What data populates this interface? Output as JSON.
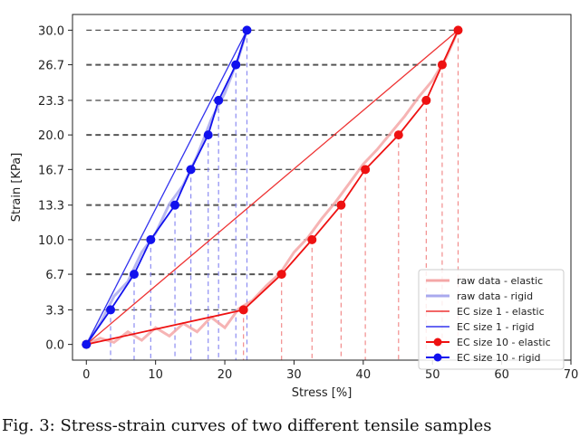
{
  "chart_data": {
    "type": "line",
    "xlabel": "Stress [%]",
    "ylabel": "Strain [KPa]",
    "xlim": [
      -2,
      70
    ],
    "ylim": [
      -1.5,
      31.5
    ],
    "xticks": [
      0,
      10,
      20,
      30,
      40,
      50,
      60,
      70
    ],
    "yticks": [
      0.0,
      3.3,
      6.7,
      10.0,
      13.3,
      16.7,
      20.0,
      23.3,
      26.7,
      30.0
    ],
    "ytick_labels": [
      "0.0",
      "3.3",
      "6.7",
      "10.0",
      "13.3",
      "16.7",
      "20.0",
      "23.3",
      "26.7",
      "30.0"
    ],
    "grid": false,
    "legend_position": "lower-right",
    "series": [
      {
        "name": "raw data - elastic",
        "style": "raw",
        "color": "#f4a7a7",
        "x": [
          0,
          2,
          4,
          6,
          8,
          10,
          12,
          14,
          16,
          18,
          20,
          22,
          24,
          26,
          28,
          30,
          32,
          34,
          36,
          38,
          40,
          42,
          44,
          46,
          48,
          50,
          52,
          53.7
        ],
        "y": [
          0,
          0.6,
          0.2,
          1.2,
          0.4,
          1.6,
          0.8,
          2.0,
          1.2,
          2.6,
          1.6,
          3.4,
          4.2,
          5.6,
          6.8,
          8.8,
          10.2,
          12.0,
          13.6,
          15.4,
          17.2,
          18.6,
          20.2,
          21.8,
          23.6,
          25.2,
          27.4,
          30.0
        ]
      },
      {
        "name": "raw data - rigid",
        "style": "raw",
        "color": "#a9a9ee",
        "x": [
          0,
          2,
          4,
          6,
          8,
          10,
          12,
          14,
          16,
          18,
          20,
          22,
          23.2
        ],
        "y": [
          0,
          2.0,
          4.6,
          6.0,
          8.8,
          10.6,
          13.4,
          15.2,
          18.0,
          21.4,
          24.0,
          27.4,
          30.0
        ]
      },
      {
        "name": "EC size 1 - elastic",
        "style": "line",
        "color": "#ee3333",
        "x": [
          0,
          53.7
        ],
        "y": [
          0,
          30.0
        ]
      },
      {
        "name": "EC size 1 - rigid",
        "style": "line",
        "color": "#3333ee",
        "x": [
          0,
          23.2
        ],
        "y": [
          0,
          30.0
        ]
      },
      {
        "name": "EC size 10 - elastic",
        "style": "markers",
        "color": "#ee1111",
        "x": [
          0,
          22.7,
          28.2,
          32.6,
          36.8,
          40.3,
          45.1,
          49.1,
          51.4,
          53.7
        ],
        "y": [
          0,
          3.3,
          6.7,
          10.0,
          13.3,
          16.7,
          20.0,
          23.3,
          26.7,
          30.0
        ]
      },
      {
        "name": "EC size 10 - rigid",
        "style": "markers",
        "color": "#1111ee",
        "x": [
          0,
          3.5,
          6.9,
          9.3,
          12.8,
          15.1,
          17.6,
          19.1,
          21.6,
          23.2
        ],
        "y": [
          0,
          3.3,
          6.7,
          10.0,
          13.3,
          16.7,
          20.0,
          23.3,
          26.7,
          30.0
        ]
      }
    ]
  },
  "caption": "Fig. 3: Stress-strain curves of two different tensile samples"
}
